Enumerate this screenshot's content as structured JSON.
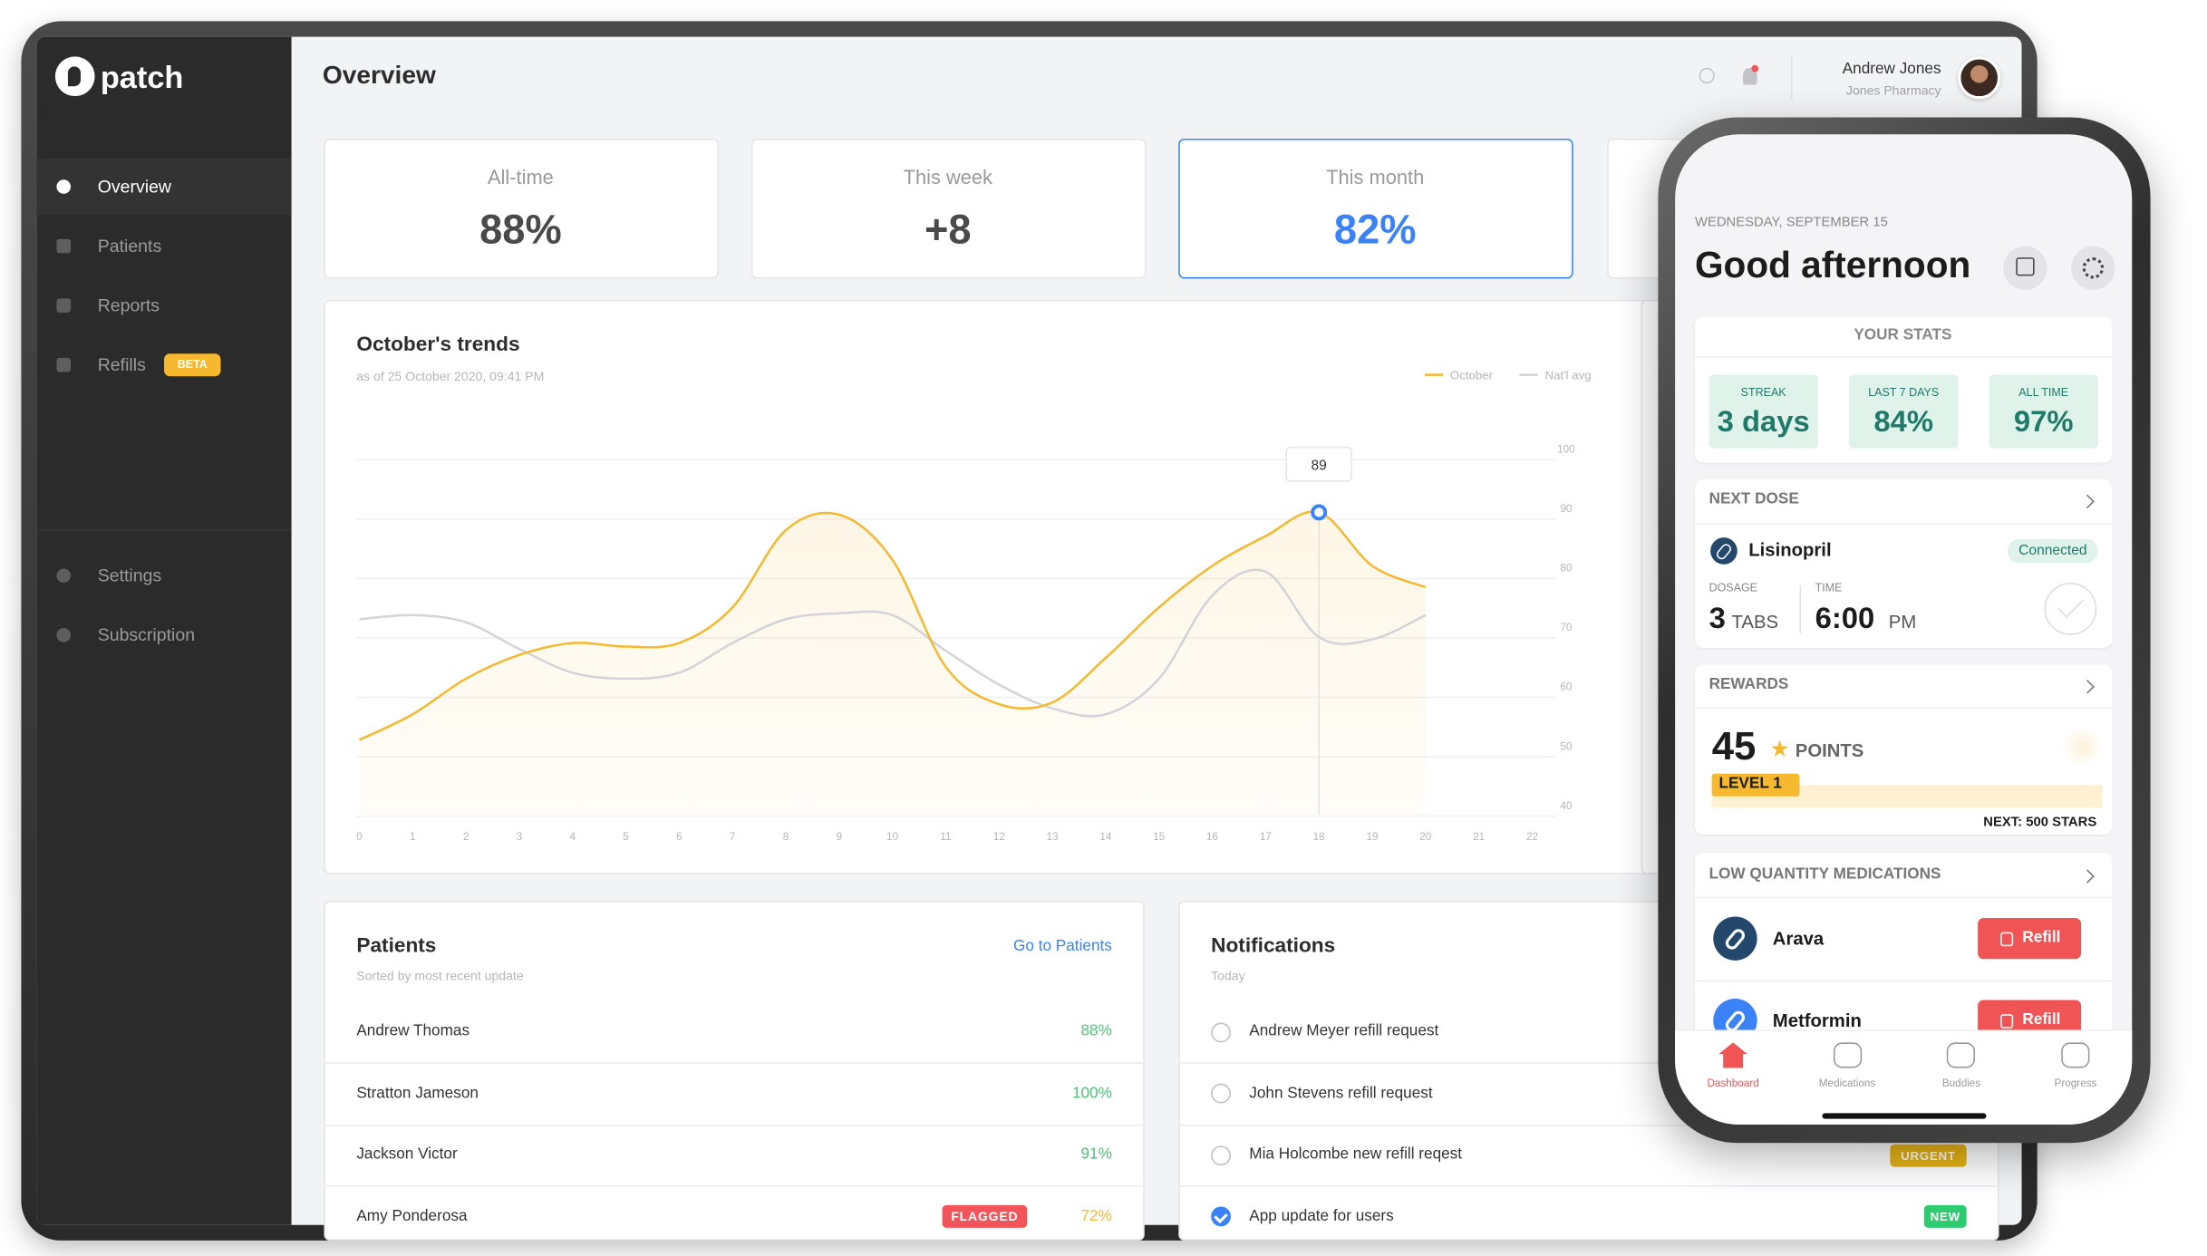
{
  "sidebar": {
    "brand": "patch",
    "nav": [
      {
        "label": "Overview"
      },
      {
        "label": "Patients"
      },
      {
        "label": "Reports"
      },
      {
        "label": "Refills",
        "badge": "BETA"
      }
    ],
    "footer_nav": [
      "Settings",
      "Subscription"
    ]
  },
  "header": {
    "title": "Overview",
    "user_name": "Andrew Jones",
    "user_org": "Jones Pharmacy"
  },
  "stat_cards": [
    {
      "label": "All-time",
      "value": "88%"
    },
    {
      "label": "This week",
      "value": "+8"
    },
    {
      "label": "This month",
      "value": "82%"
    }
  ],
  "trends": {
    "title": "October's trends",
    "subtitle": "as of 25 October 2020, 09:41 PM"
  },
  "chart_data": {
    "type": "line",
    "x": [
      0,
      1,
      2,
      3,
      4,
      5,
      6,
      7,
      8,
      9,
      10,
      11,
      12,
      13,
      14,
      15,
      16,
      17,
      18,
      19,
      20,
      21,
      22
    ],
    "series": [
      {
        "name": "October",
        "color": "#f5b82e",
        "values": [
          50.7,
          55,
          61,
          65,
          67,
          66.4,
          67,
          73,
          86,
          88.6,
          81,
          63,
          56.7,
          57,
          64.5,
          73,
          80,
          85,
          89,
          80,
          76.4,
          null,
          null
        ]
      },
      {
        "name": "Nat'l avg",
        "color": "#d3d3d8",
        "values": [
          71,
          71.7,
          70.5,
          66,
          62,
          61,
          62,
          67,
          71,
          72,
          71.7,
          65.7,
          60,
          56,
          55,
          61,
          75,
          79,
          68,
          67.6,
          71.7,
          null,
          null
        ]
      }
    ],
    "xlim": [
      0,
      22
    ],
    "xticks": [
      0,
      1,
      2,
      3,
      4,
      5,
      6,
      7,
      8,
      9,
      10,
      11,
      12,
      13,
      14,
      15,
      16,
      17,
      18,
      19,
      20,
      21,
      22
    ],
    "ylim": [
      40,
      100
    ],
    "yticks": [
      40,
      50,
      60,
      70,
      80,
      90,
      100
    ],
    "grid": true
  },
  "patients": {
    "title": "Patients",
    "subtitle": "Sorted by most recent update",
    "link": "Go to Patients",
    "rows": [
      {
        "name": "Andrew Thomas",
        "score": "88%"
      },
      {
        "name": "Stratton Jameson",
        "score": "100%"
      },
      {
        "name": "Jackson Victor",
        "score": "91%"
      },
      {
        "name": "Amy Ponderosa",
        "score": "72%",
        "flag": "FLAGGED"
      }
    ]
  },
  "notifications": {
    "title": "Notifications",
    "subtitle": "Today",
    "items": [
      {
        "text": "Andrew Meyer refill request"
      },
      {
        "text": "John Stevens refill request"
      },
      {
        "text": "Mia Holcombe new refill reqest",
        "tag": "URGENT"
      },
      {
        "text": "App update for users",
        "tag": "NEW",
        "done": true
      }
    ]
  },
  "phone": {
    "date": "WEDNESDAY, SEPTEMBER 15",
    "greeting": "Good afternoon",
    "stats": {
      "title": "YOUR STATS",
      "items": [
        {
          "label": "STREAK",
          "value": "3 days"
        },
        {
          "label": "LAST 7 DAYS",
          "value": "84%"
        },
        {
          "label": "ALL TIME",
          "value": "97%"
        }
      ]
    },
    "next_dose": {
      "title": "NEXT DOSE",
      "medication": "Lisinopril",
      "status": "Connected",
      "dosage_label": "DOSAGE",
      "dosage": "3",
      "dosage_unit": "TABS",
      "time_label": "TIME",
      "time": "6:00",
      "time_unit": "PM"
    },
    "rewards": {
      "title": "REWARDS",
      "points": "45",
      "points_label": "POINTS",
      "level": "LEVEL 1",
      "next": "NEXT: 500 STARS"
    },
    "low_quantity": {
      "title": "LOW QUANTITY MEDICATIONS",
      "items": [
        {
          "name": "Arava",
          "action": "Refill"
        },
        {
          "name": "Metformin",
          "action": "Refill"
        }
      ]
    },
    "tabs": [
      "Dashboard",
      "Medications",
      "Buddies",
      "Progress"
    ]
  }
}
